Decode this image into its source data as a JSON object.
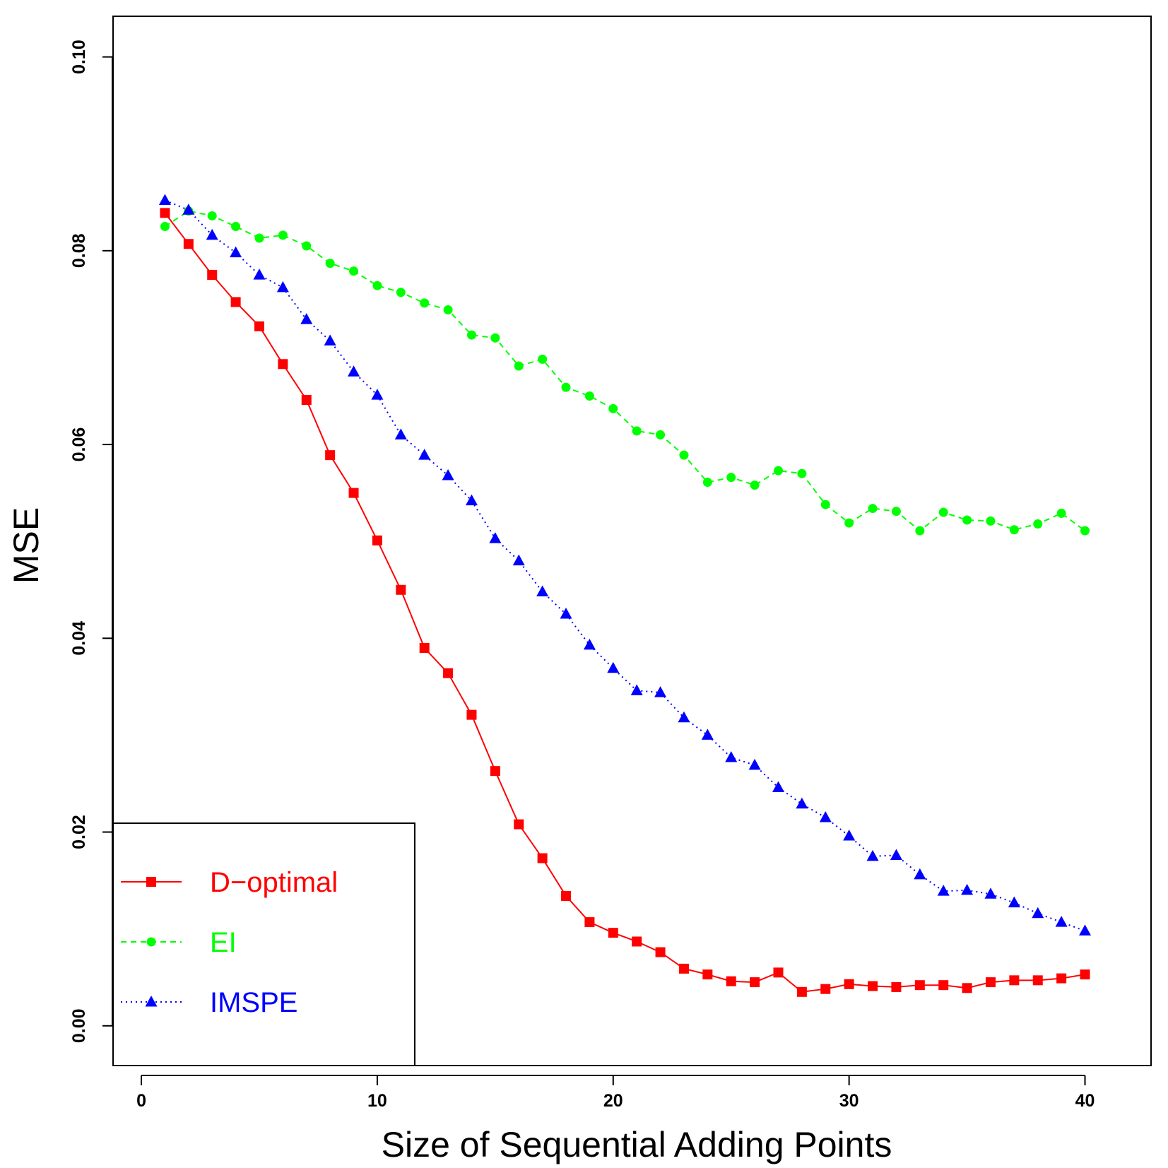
{
  "chart_data": {
    "type": "line",
    "title": "",
    "xlabel": "Size of Sequential Adding Points",
    "ylabel": "MSE",
    "xlim": [
      -1.2,
      42.8
    ],
    "ylim": [
      -0.0041,
      0.1042
    ],
    "xticks": [
      0,
      10,
      20,
      30,
      40
    ],
    "xtick_labels": [
      "0",
      "10",
      "20",
      "30",
      "40"
    ],
    "yticks": [
      0.0,
      0.02,
      0.04,
      0.06,
      0.08,
      0.1
    ],
    "ytick_labels": [
      "0.00",
      "0.02",
      "0.04",
      "0.06",
      "0.08",
      "0.10"
    ],
    "grid": false,
    "legend_position": "bottom-left",
    "x": [
      1,
      2,
      3,
      4,
      5,
      6,
      7,
      8,
      9,
      10,
      11,
      12,
      13,
      14,
      15,
      16,
      17,
      18,
      19,
      20,
      21,
      22,
      23,
      24,
      25,
      26,
      27,
      28,
      29,
      30,
      31,
      32,
      33,
      34,
      35,
      36,
      37,
      38,
      39,
      40
    ],
    "series": [
      {
        "name": "D−optimal",
        "color": "#ff0000",
        "dash": "solid",
        "marker": "square",
        "values": [
          0.0839,
          0.0807,
          0.0775,
          0.0747,
          0.0722,
          0.0683,
          0.0646,
          0.0589,
          0.055,
          0.0501,
          0.045,
          0.039,
          0.0364,
          0.0321,
          0.0263,
          0.0208,
          0.0173,
          0.0134,
          0.0107,
          0.0096,
          0.0087,
          0.0076,
          0.0059,
          0.0053,
          0.0046,
          0.0045,
          0.0055,
          0.0035,
          0.0038,
          0.0043,
          0.0041,
          0.004,
          0.0042,
          0.0042,
          0.0039,
          0.0045,
          0.0047,
          0.0047,
          0.0049,
          0.0053
        ]
      },
      {
        "name": "EI",
        "color": "#00ff00",
        "dash": "dashed",
        "marker": "circle",
        "values": [
          0.0825,
          0.0841,
          0.0836,
          0.0825,
          0.0813,
          0.0816,
          0.0805,
          0.0787,
          0.0779,
          0.0764,
          0.0757,
          0.0746,
          0.0739,
          0.0713,
          0.071,
          0.0681,
          0.0688,
          0.0659,
          0.065,
          0.0637,
          0.0614,
          0.061,
          0.0589,
          0.0561,
          0.0566,
          0.0558,
          0.0573,
          0.057,
          0.0538,
          0.0519,
          0.0534,
          0.0531,
          0.0511,
          0.053,
          0.0522,
          0.0521,
          0.0512,
          0.0518,
          0.0529,
          0.0511
        ]
      },
      {
        "name": "IMSPE",
        "color": "#0000ff",
        "dash": "dotted",
        "marker": "triangle",
        "values": [
          0.0852,
          0.0842,
          0.0816,
          0.0798,
          0.0775,
          0.0762,
          0.0729,
          0.0707,
          0.0675,
          0.0651,
          0.061,
          0.0589,
          0.0568,
          0.0542,
          0.0503,
          0.048,
          0.0448,
          0.0425,
          0.0393,
          0.0369,
          0.0346,
          0.0344,
          0.0318,
          0.03,
          0.0277,
          0.0269,
          0.0246,
          0.0229,
          0.0215,
          0.0196,
          0.0175,
          0.0176,
          0.0156,
          0.0139,
          0.014,
          0.0136,
          0.0127,
          0.0116,
          0.0107,
          0.0098
        ]
      }
    ]
  }
}
